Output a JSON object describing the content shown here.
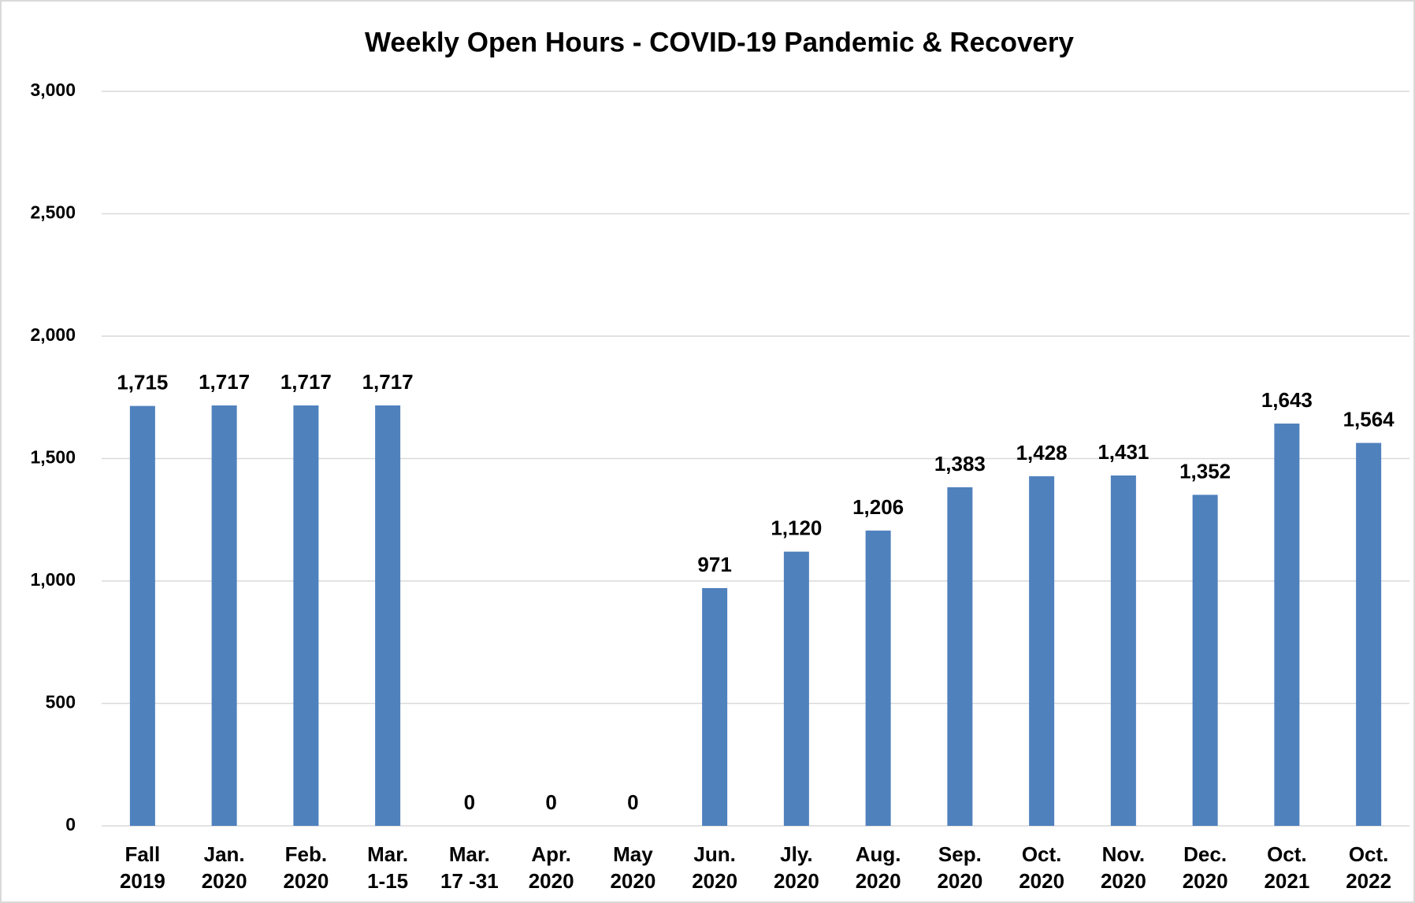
{
  "chart_data": {
    "type": "bar",
    "title": "Weekly Open Hours - COVID-19 Pandemic & Recovery",
    "categories": [
      [
        "Fall",
        "2019"
      ],
      [
        "Jan.",
        "2020"
      ],
      [
        "Feb.",
        "2020"
      ],
      [
        "Mar.",
        "1-15"
      ],
      [
        "Mar.",
        "17 -31"
      ],
      [
        "Apr.",
        "2020"
      ],
      [
        "May",
        "2020"
      ],
      [
        "Jun.",
        "2020"
      ],
      [
        "Jly.",
        "2020"
      ],
      [
        "Aug.",
        "2020"
      ],
      [
        "Sep.",
        "2020"
      ],
      [
        "Oct.",
        "2020"
      ],
      [
        "Nov.",
        "2020"
      ],
      [
        "Dec.",
        "2020"
      ],
      [
        "Oct.",
        "2021"
      ],
      [
        "Oct.",
        "2022"
      ]
    ],
    "values": [
      1715,
      1717,
      1717,
      1717,
      0,
      0,
      0,
      971,
      1120,
      1206,
      1383,
      1428,
      1431,
      1352,
      1643,
      1564
    ],
    "value_labels": [
      "1,715",
      "1,717",
      "1,717",
      "1,717",
      "0",
      "0",
      "0",
      "971",
      "1,120",
      "1,206",
      "1,383",
      "1,428",
      "1,431",
      "1,352",
      "1,643",
      "1,564"
    ],
    "color": "#4f81bd",
    "ylim": [
      0,
      3000
    ],
    "yticks": [
      0,
      500,
      {
        "value": 1000,
        "label": "1,000"
      },
      {
        "value": 1500,
        "label": "1,500"
      },
      {
        "value": 2000,
        "label": "2,000"
      },
      {
        "value": 2500,
        "label": "2,500"
      },
      {
        "value": 3000,
        "label": "3,000"
      }
    ],
    "grid": true
  }
}
